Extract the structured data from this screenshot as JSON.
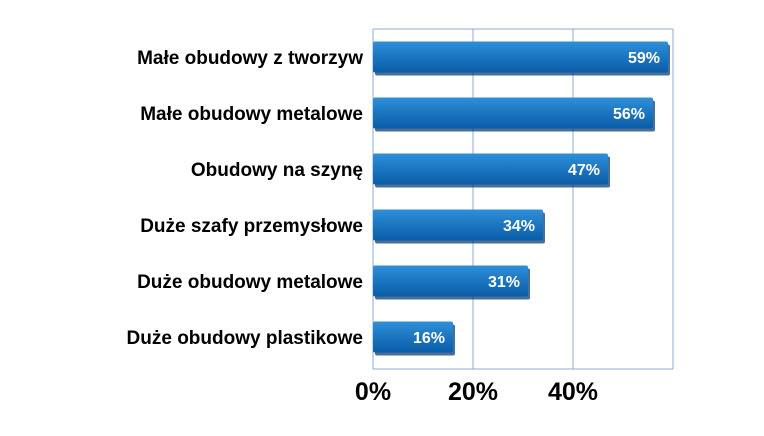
{
  "chart_data": {
    "type": "bar",
    "orientation": "horizontal",
    "categories": [
      "Małe obudowy z tworzyw",
      "Małe obudowy metalowe",
      "Obudowy na szynę",
      "Duże szafy przemysłowe",
      "Duże obudowy metalowe",
      "Duże obudowy plastikowe"
    ],
    "values": [
      59,
      56,
      47,
      34,
      31,
      16
    ],
    "value_labels": [
      "59%",
      "56%",
      "47%",
      "34%",
      "31%",
      "16%"
    ],
    "x_ticks": [
      0,
      20,
      40
    ],
    "x_tick_labels": [
      "0%",
      "20%",
      "40%"
    ],
    "xlim": [
      0,
      60
    ],
    "grid": true,
    "legend": "none",
    "title": "",
    "xlabel": "",
    "ylabel": ""
  },
  "colors": {
    "bar_top": "#2f8fd8",
    "bar_bottom": "#0a5ca8",
    "bar_shadow": "#0a3f78",
    "grid": "#8ca8d8"
  }
}
